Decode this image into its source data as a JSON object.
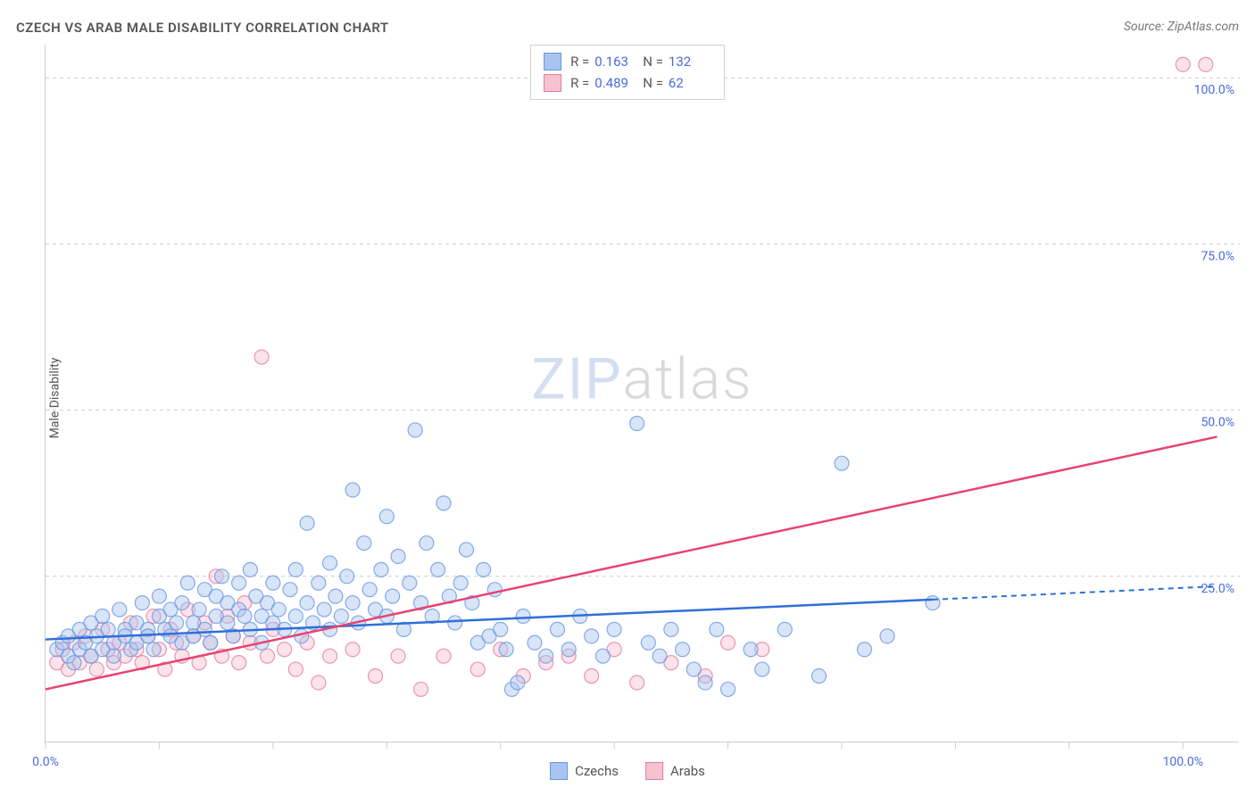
{
  "title": "CZECH VS ARAB MALE DISABILITY CORRELATION CHART",
  "source": "Source: ZipAtlas.com",
  "y_axis_label": "Male Disability",
  "watermark": {
    "part1": "ZIP",
    "part2": "atlas"
  },
  "chart": {
    "type": "scatter",
    "xlim": [
      0,
      105
    ],
    "ylim": [
      0,
      105
    ],
    "x_ticks": [
      0,
      10,
      20,
      30,
      40,
      50,
      60,
      70,
      80,
      90,
      100
    ],
    "y_ticks": [
      25,
      50,
      75,
      100
    ],
    "y_tick_labels": [
      "25.0%",
      "50.0%",
      "75.0%",
      "100.0%"
    ],
    "x_start_label": "0.0%",
    "x_end_label": "100.0%",
    "background_color": "#ffffff",
    "grid_color": "#cccccc",
    "grid_dash": "4 4",
    "axis_label_color": "#4a6bdf",
    "marker_radius": 8,
    "marker_opacity": 0.45,
    "marker_stroke_opacity": 0.8,
    "series": {
      "czechs": {
        "label": "Czechs",
        "fill": "#a9c4f0",
        "stroke": "#6a97e0",
        "trend_color": "#2f6fd8",
        "R": "0.163",
        "N": "132",
        "trend": {
          "x1": 0,
          "y1": 15.5,
          "x2": 78,
          "y2": 21.5,
          "dash_x2": 103,
          "dash_y2": 23.5
        },
        "points": [
          [
            1,
            14
          ],
          [
            1.5,
            15
          ],
          [
            2,
            13
          ],
          [
            2,
            16
          ],
          [
            2.5,
            12
          ],
          [
            3,
            17
          ],
          [
            3,
            14
          ],
          [
            3.5,
            15
          ],
          [
            4,
            13
          ],
          [
            4,
            18
          ],
          [
            4.5,
            16
          ],
          [
            5,
            14
          ],
          [
            5,
            19
          ],
          [
            5.5,
            17
          ],
          [
            6,
            15
          ],
          [
            6,
            13
          ],
          [
            6.5,
            20
          ],
          [
            7,
            17
          ],
          [
            7,
            16
          ],
          [
            7.5,
            14
          ],
          [
            8,
            18
          ],
          [
            8,
            15
          ],
          [
            8.5,
            21
          ],
          [
            9,
            17
          ],
          [
            9,
            16
          ],
          [
            9.5,
            14
          ],
          [
            10,
            19
          ],
          [
            10,
            22
          ],
          [
            10.5,
            17
          ],
          [
            11,
            16
          ],
          [
            11,
            20
          ],
          [
            11.5,
            18
          ],
          [
            12,
            15
          ],
          [
            12,
            21
          ],
          [
            12.5,
            24
          ],
          [
            13,
            18
          ],
          [
            13,
            16
          ],
          [
            13.5,
            20
          ],
          [
            14,
            23
          ],
          [
            14,
            17
          ],
          [
            14.5,
            15
          ],
          [
            15,
            22
          ],
          [
            15,
            19
          ],
          [
            15.5,
            25
          ],
          [
            16,
            18
          ],
          [
            16,
            21
          ],
          [
            16.5,
            16
          ],
          [
            17,
            24
          ],
          [
            17,
            20
          ],
          [
            17.5,
            19
          ],
          [
            18,
            17
          ],
          [
            18,
            26
          ],
          [
            18.5,
            22
          ],
          [
            19,
            15
          ],
          [
            19,
            19
          ],
          [
            19.5,
            21
          ],
          [
            20,
            18
          ],
          [
            20,
            24
          ],
          [
            20.5,
            20
          ],
          [
            21,
            17
          ],
          [
            21.5,
            23
          ],
          [
            22,
            19
          ],
          [
            22,
            26
          ],
          [
            22.5,
            16
          ],
          [
            23,
            21
          ],
          [
            23,
            33
          ],
          [
            23.5,
            18
          ],
          [
            24,
            24
          ],
          [
            24.5,
            20
          ],
          [
            25,
            17
          ],
          [
            25,
            27
          ],
          [
            25.5,
            22
          ],
          [
            26,
            19
          ],
          [
            26.5,
            25
          ],
          [
            27,
            38
          ],
          [
            27,
            21
          ],
          [
            27.5,
            18
          ],
          [
            28,
            30
          ],
          [
            28.5,
            23
          ],
          [
            29,
            20
          ],
          [
            29.5,
            26
          ],
          [
            30,
            34
          ],
          [
            30,
            19
          ],
          [
            30.5,
            22
          ],
          [
            31,
            28
          ],
          [
            31.5,
            17
          ],
          [
            32,
            24
          ],
          [
            32.5,
            47
          ],
          [
            33,
            21
          ],
          [
            33.5,
            30
          ],
          [
            34,
            19
          ],
          [
            34.5,
            26
          ],
          [
            35,
            36
          ],
          [
            35.5,
            22
          ],
          [
            36,
            18
          ],
          [
            36.5,
            24
          ],
          [
            37,
            29
          ],
          [
            37.5,
            21
          ],
          [
            38,
            15
          ],
          [
            38.5,
            26
          ],
          [
            39,
            16
          ],
          [
            39.5,
            23
          ],
          [
            40,
            17
          ],
          [
            40.5,
            14
          ],
          [
            41,
            8
          ],
          [
            41.5,
            9
          ],
          [
            42,
            19
          ],
          [
            43,
            15
          ],
          [
            44,
            13
          ],
          [
            45,
            17
          ],
          [
            46,
            14
          ],
          [
            47,
            19
          ],
          [
            48,
            16
          ],
          [
            49,
            13
          ],
          [
            50,
            17
          ],
          [
            52,
            48
          ],
          [
            53,
            15
          ],
          [
            54,
            13
          ],
          [
            55,
            17
          ],
          [
            56,
            14
          ],
          [
            57,
            11
          ],
          [
            58,
            9
          ],
          [
            59,
            17
          ],
          [
            60,
            8
          ],
          [
            62,
            14
          ],
          [
            63,
            11
          ],
          [
            65,
            17
          ],
          [
            68,
            10
          ],
          [
            70,
            42
          ],
          [
            72,
            14
          ],
          [
            74,
            16
          ],
          [
            78,
            21
          ]
        ]
      },
      "arabs": {
        "label": "Arabs",
        "fill": "#f5c2d0",
        "stroke": "#e77ca0",
        "trend_color": "#e8436f",
        "R": "0.489",
        "N": "62",
        "trend": {
          "x1": 0,
          "y1": 8,
          "x2": 103,
          "y2": 46
        },
        "points": [
          [
            1,
            12
          ],
          [
            1.5,
            14
          ],
          [
            2,
            11
          ],
          [
            2.5,
            15
          ],
          [
            3,
            12
          ],
          [
            3.5,
            16
          ],
          [
            4,
            13
          ],
          [
            4.5,
            11
          ],
          [
            5,
            17
          ],
          [
            5.5,
            14
          ],
          [
            6,
            12
          ],
          [
            6.5,
            15
          ],
          [
            7,
            13
          ],
          [
            7.5,
            18
          ],
          [
            8,
            14
          ],
          [
            8.5,
            12
          ],
          [
            9,
            16
          ],
          [
            9.5,
            19
          ],
          [
            10,
            14
          ],
          [
            10.5,
            11
          ],
          [
            11,
            17
          ],
          [
            11.5,
            15
          ],
          [
            12,
            13
          ],
          [
            12.5,
            20
          ],
          [
            13,
            16
          ],
          [
            13.5,
            12
          ],
          [
            14,
            18
          ],
          [
            14.5,
            15
          ],
          [
            15,
            25
          ],
          [
            15.5,
            13
          ],
          [
            16,
            19
          ],
          [
            16.5,
            16
          ],
          [
            17,
            12
          ],
          [
            17.5,
            21
          ],
          [
            18,
            15
          ],
          [
            19,
            58
          ],
          [
            19.5,
            13
          ],
          [
            20,
            17
          ],
          [
            21,
            14
          ],
          [
            22,
            11
          ],
          [
            23,
            15
          ],
          [
            24,
            9
          ],
          [
            25,
            13
          ],
          [
            27,
            14
          ],
          [
            29,
            10
          ],
          [
            31,
            13
          ],
          [
            33,
            8
          ],
          [
            35,
            13
          ],
          [
            38,
            11
          ],
          [
            40,
            14
          ],
          [
            42,
            10
          ],
          [
            44,
            12
          ],
          [
            46,
            13
          ],
          [
            48,
            10
          ],
          [
            50,
            14
          ],
          [
            52,
            9
          ],
          [
            55,
            12
          ],
          [
            58,
            10
          ],
          [
            60,
            15
          ],
          [
            63,
            14
          ],
          [
            100,
            102
          ],
          [
            102,
            102
          ]
        ]
      }
    }
  },
  "legend_top": {
    "rows": [
      {
        "swatch_fill": "#a9c4f0",
        "swatch_stroke": "#6a97e0",
        "r_label": "R =",
        "r_val": "0.163",
        "n_label": "N =",
        "n_val": "132"
      },
      {
        "swatch_fill": "#f5c2d0",
        "swatch_stroke": "#e77ca0",
        "r_label": "R =",
        "r_val": "0.489",
        "n_label": "N =",
        "n_val": "62"
      }
    ]
  },
  "legend_bottom": [
    {
      "swatch_fill": "#a9c4f0",
      "swatch_stroke": "#6a97e0",
      "label": "Czechs"
    },
    {
      "swatch_fill": "#f5c2d0",
      "swatch_stroke": "#e77ca0",
      "label": "Arabs"
    }
  ]
}
